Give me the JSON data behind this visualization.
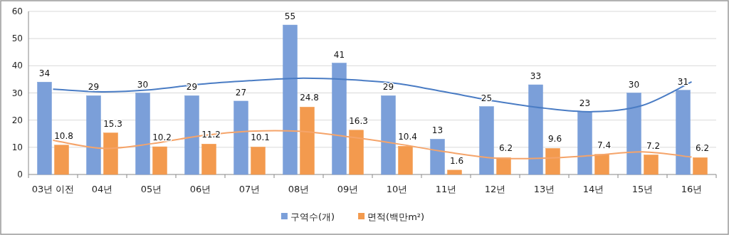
{
  "chart_data": {
    "type": "bar",
    "categories": [
      "03년 이전",
      "04년",
      "05년",
      "06년",
      "07년",
      "08년",
      "09년",
      "10년",
      "11년",
      "12년",
      "13년",
      "14년",
      "15년",
      "16년"
    ],
    "series": [
      {
        "name": "구역수(개)",
        "color": "#7b9fd9",
        "values": [
          34,
          29,
          30,
          29,
          27,
          55,
          41,
          29,
          13,
          25,
          33,
          23,
          30,
          31
        ],
        "value_labels": [
          "34",
          "29",
          "30",
          "29",
          "27",
          "55",
          "41",
          "29",
          "13",
          "25",
          "33",
          "23",
          "30",
          "31"
        ]
      },
      {
        "name": "면적(백만m²)",
        "color": "#f39a4e",
        "values": [
          10.8,
          15.3,
          10.2,
          11.2,
          10.1,
          24.8,
          16.3,
          10.4,
          1.6,
          6.2,
          9.6,
          7.4,
          7.2,
          6.2
        ],
        "value_labels": [
          "10.8",
          "15.3",
          "10.2",
          "11.2",
          "10.1",
          "24.8",
          "16.3",
          "10.4",
          "1.6",
          "6.2",
          "9.6",
          "7.4",
          "7.2",
          "6.2"
        ]
      },
      {
        "type": "line",
        "color": "#4a7cc4",
        "values": [
          31.4,
          30.4,
          31.2,
          33.2,
          34.5,
          35.4,
          34.9,
          33.5,
          30.3,
          27.0,
          24.4,
          23.1,
          25.4,
          34.1
        ]
      },
      {
        "type": "line",
        "color": "#f5a46a",
        "values": [
          12.6,
          9.6,
          11.3,
          14.2,
          15.9,
          15.9,
          13.9,
          11.3,
          8.3,
          6.0,
          6.0,
          7.0,
          8.3,
          6.4
        ]
      }
    ],
    "ylim": [
      0,
      60
    ],
    "yticks": [
      0,
      10,
      20,
      30,
      40,
      50,
      60
    ],
    "grid": "y",
    "legend": "bottom",
    "marker": "none"
  }
}
